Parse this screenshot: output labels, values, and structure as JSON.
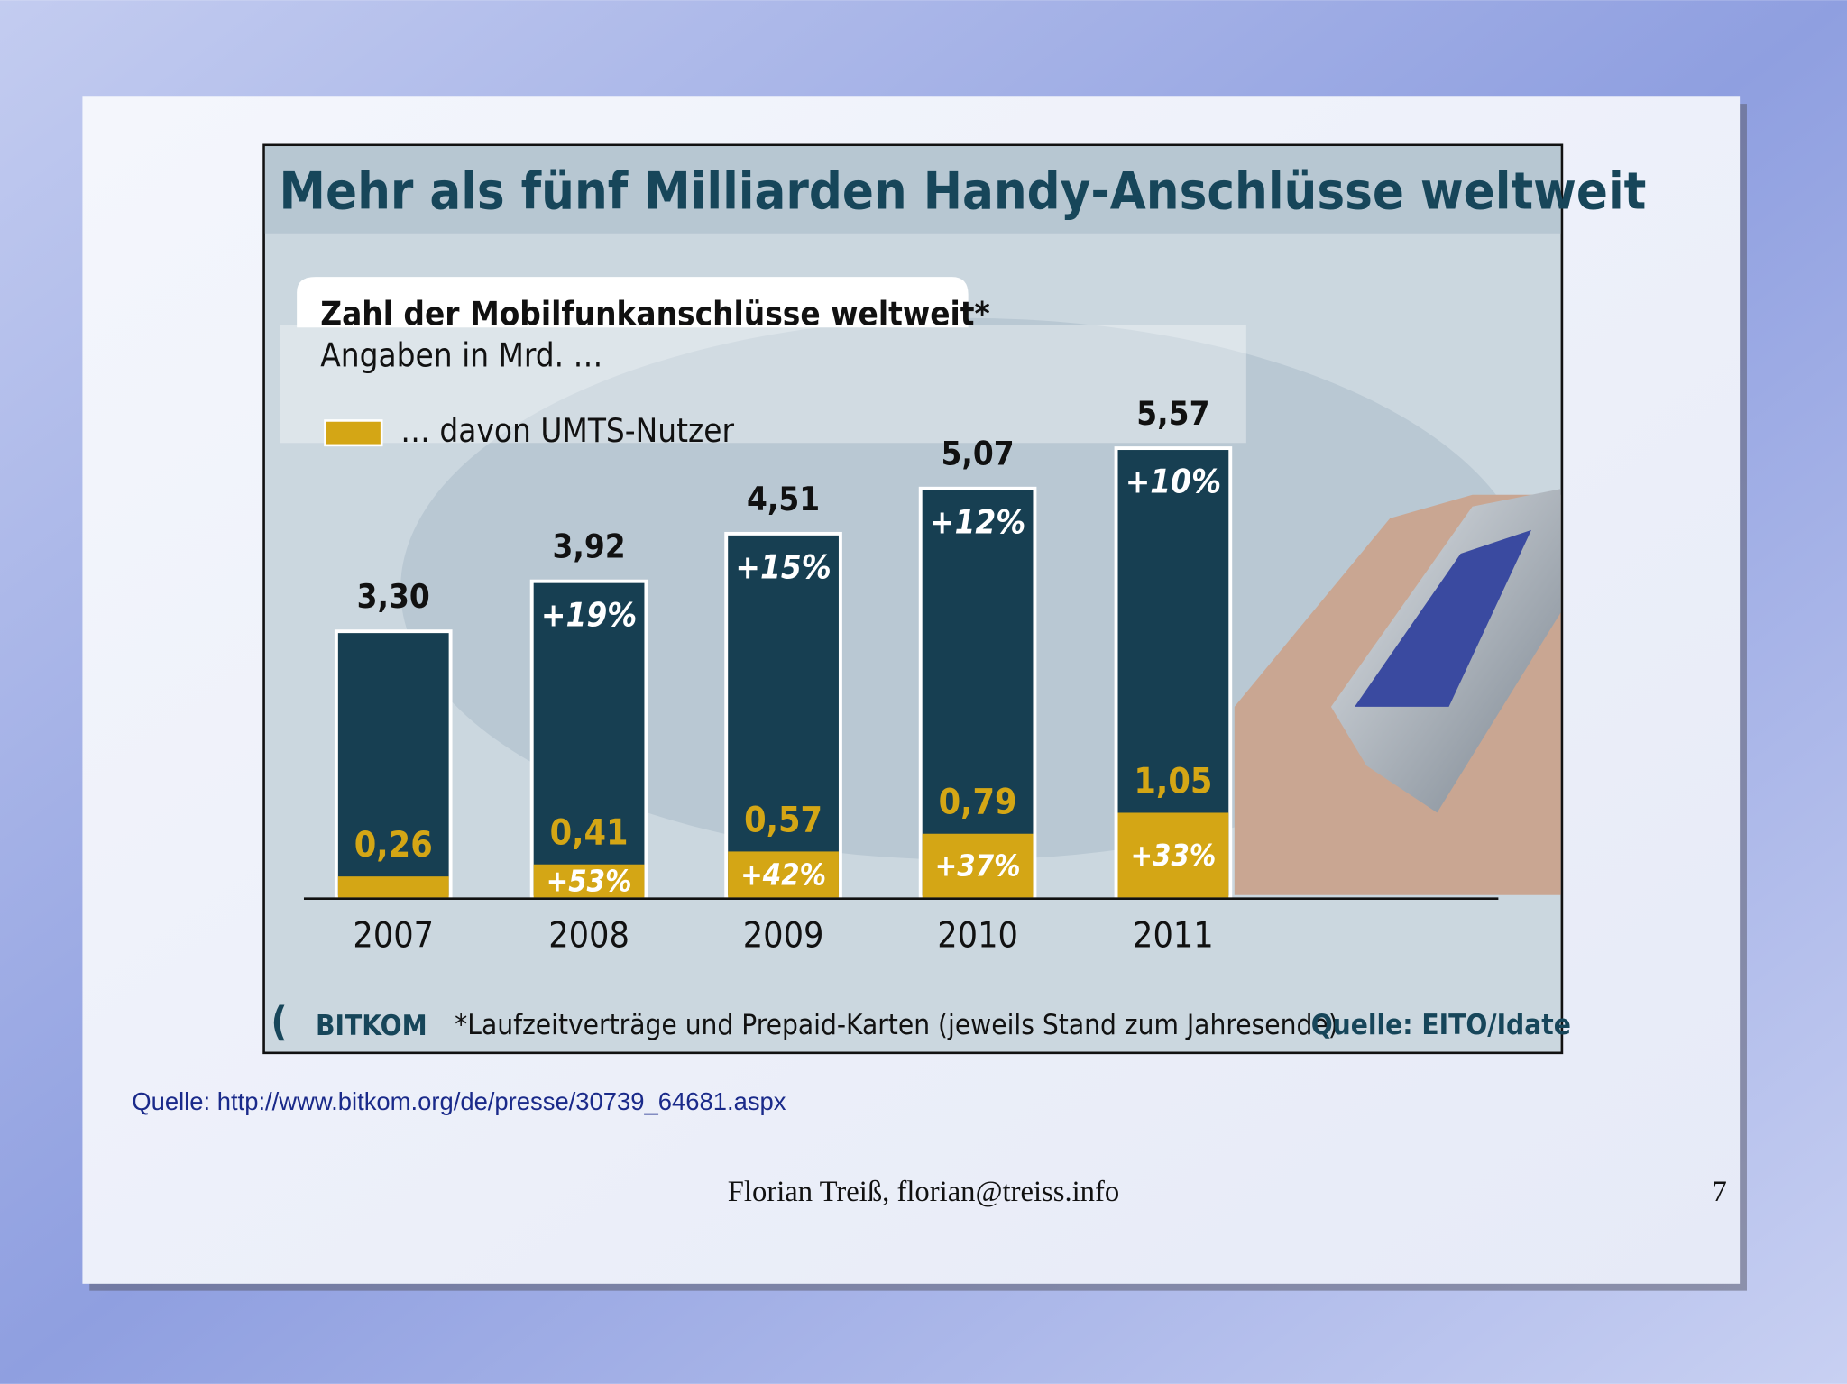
{
  "slide": {
    "source": "Quelle: http://www.bitkom.org/de/presse/30739_64681.aspx",
    "footer": "Florian Treiß, florian@treiss.info",
    "page_number": "7"
  },
  "chart_data": {
    "type": "bar",
    "title": "Mehr als fünf Milliarden Handy-Anschlüsse weltweit",
    "subtitle": "Zahl der Mobilfunkanschlüsse weltweit*",
    "unit_label": "Angaben in Mrd. …",
    "logo": "BITKOM",
    "footnote": "*Laufzeitverträge und Prepaid-Karten (jeweils Stand zum Jahresende)",
    "source": "Quelle: EITO/Idate",
    "categories": [
      "2007",
      "2008",
      "2009",
      "2010",
      "2011"
    ],
    "series": [
      {
        "color": "#173f52",
        "values": [
          3.3,
          3.92,
          4.51,
          5.07,
          5.57
        ],
        "value_labels": [
          "3,30",
          "3,92",
          "4,51",
          "5,07",
          "5,57"
        ],
        "growth": [
          null,
          19,
          15,
          12,
          10
        ],
        "growth_labels": [
          null,
          "+19%",
          "+15%",
          "+12%",
          "+10%"
        ]
      },
      {
        "name": "… davon UMTS-Nutzer",
        "color": "#d4a615",
        "values": [
          0.26,
          0.41,
          0.57,
          0.79,
          1.05
        ],
        "value_labels": [
          "0,26",
          "0,41",
          "0,57",
          "0,79",
          "1,05"
        ],
        "growth": [
          null,
          53,
          42,
          37,
          33
        ],
        "growth_labels": [
          null,
          "+53%",
          "+42%",
          "+37%",
          "+33%"
        ]
      }
    ]
  }
}
